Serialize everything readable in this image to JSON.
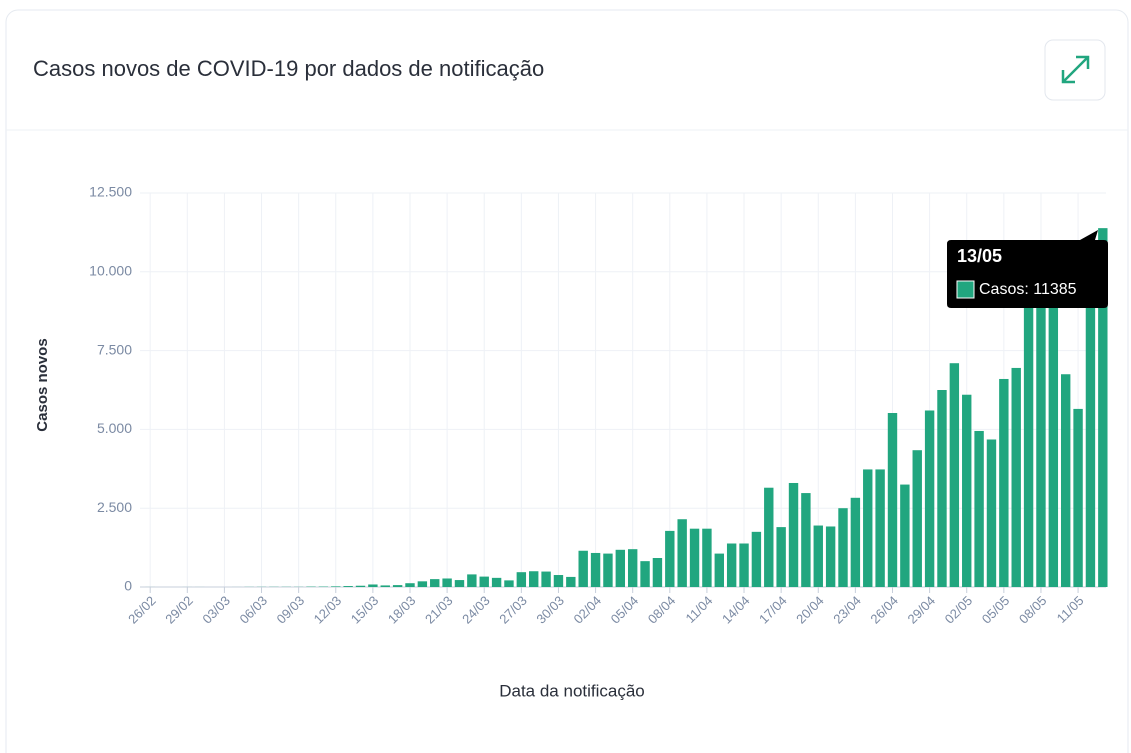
{
  "chart_data": {
    "type": "bar",
    "title": "Casos novos de COVID-19 por dados de notificação",
    "x_label": "Data da notificação",
    "y_label": "Casos novos",
    "categories": [
      "26/02",
      null,
      null,
      "29/02",
      null,
      null,
      "03/03",
      null,
      null,
      "06/03",
      null,
      null,
      "09/03",
      null,
      null,
      "12/03",
      null,
      null,
      "15/03",
      null,
      null,
      "18/03",
      null,
      null,
      "21/03",
      null,
      null,
      "24/03",
      null,
      null,
      "27/03",
      null,
      null,
      "30/03",
      null,
      null,
      "02/04",
      null,
      null,
      "05/04",
      null,
      null,
      "08/04",
      null,
      null,
      "11/04",
      null,
      null,
      "14/04",
      null,
      null,
      "17/04",
      null,
      null,
      "20/04",
      null,
      null,
      "23/04",
      null,
      null,
      "26/04",
      null,
      null,
      "29/04",
      null,
      null,
      "02/05",
      null,
      null,
      "05/05",
      null,
      null,
      "08/05",
      null,
      null,
      "11/05",
      null,
      null
    ],
    "series": [
      {
        "name": "Casos",
        "color": "#21a67f",
        "values": [
          1,
          0,
          0,
          1,
          1,
          0,
          0,
          1,
          4,
          5,
          6,
          6,
          5,
          12,
          13,
          20,
          30,
          40,
          80,
          50,
          60,
          120,
          180,
          250,
          270,
          220,
          400,
          330,
          290,
          210,
          470,
          500,
          490,
          380,
          320,
          1150,
          1080,
          1060,
          1180,
          1200,
          820,
          920,
          1780,
          2150,
          1850,
          1850,
          1060,
          1380,
          1380,
          1750,
          3150,
          1900,
          3300,
          2980,
          1950,
          1920,
          2500,
          2830,
          3730,
          3730,
          5520,
          3250,
          4340,
          5600,
          6250,
          7100,
          6100,
          4950,
          4680,
          6600,
          6950,
          10500,
          9900,
          10200,
          6750,
          5650,
          9900,
          11385
        ]
      }
    ],
    "ylim": [
      0,
      12500
    ],
    "yticks": [
      0,
      {
        "value": 2500,
        "label": "2.500"
      },
      {
        "value": 5000,
        "label": "5.000"
      },
      {
        "value": 7500,
        "label": "7.500"
      },
      {
        "value": 10000,
        "label": "10.000"
      },
      {
        "value": 12500,
        "label": "12.500"
      }
    ],
    "grid": true,
    "tooltip": {
      "title": "13/05",
      "text": "Casos: 11385"
    }
  }
}
